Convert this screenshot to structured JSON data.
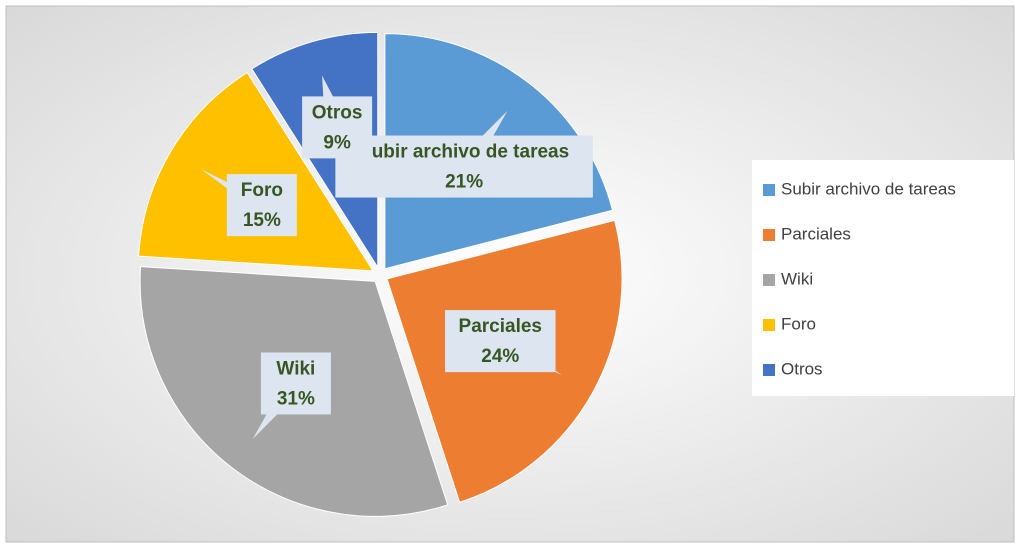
{
  "chart_data": {
    "type": "pie",
    "categories": [
      "Subir archivo de tareas",
      "Parciales",
      "Wiki",
      "Foro",
      "Otros"
    ],
    "values": [
      21,
      24,
      31,
      15,
      9
    ],
    "value_labels": [
      "21%",
      "24%",
      "31%",
      "15%",
      "9%"
    ],
    "colors": [
      "#5b9bd5",
      "#ed7d31",
      "#a5a5a5",
      "#ffc000",
      "#4472c4"
    ],
    "legend": "right"
  }
}
